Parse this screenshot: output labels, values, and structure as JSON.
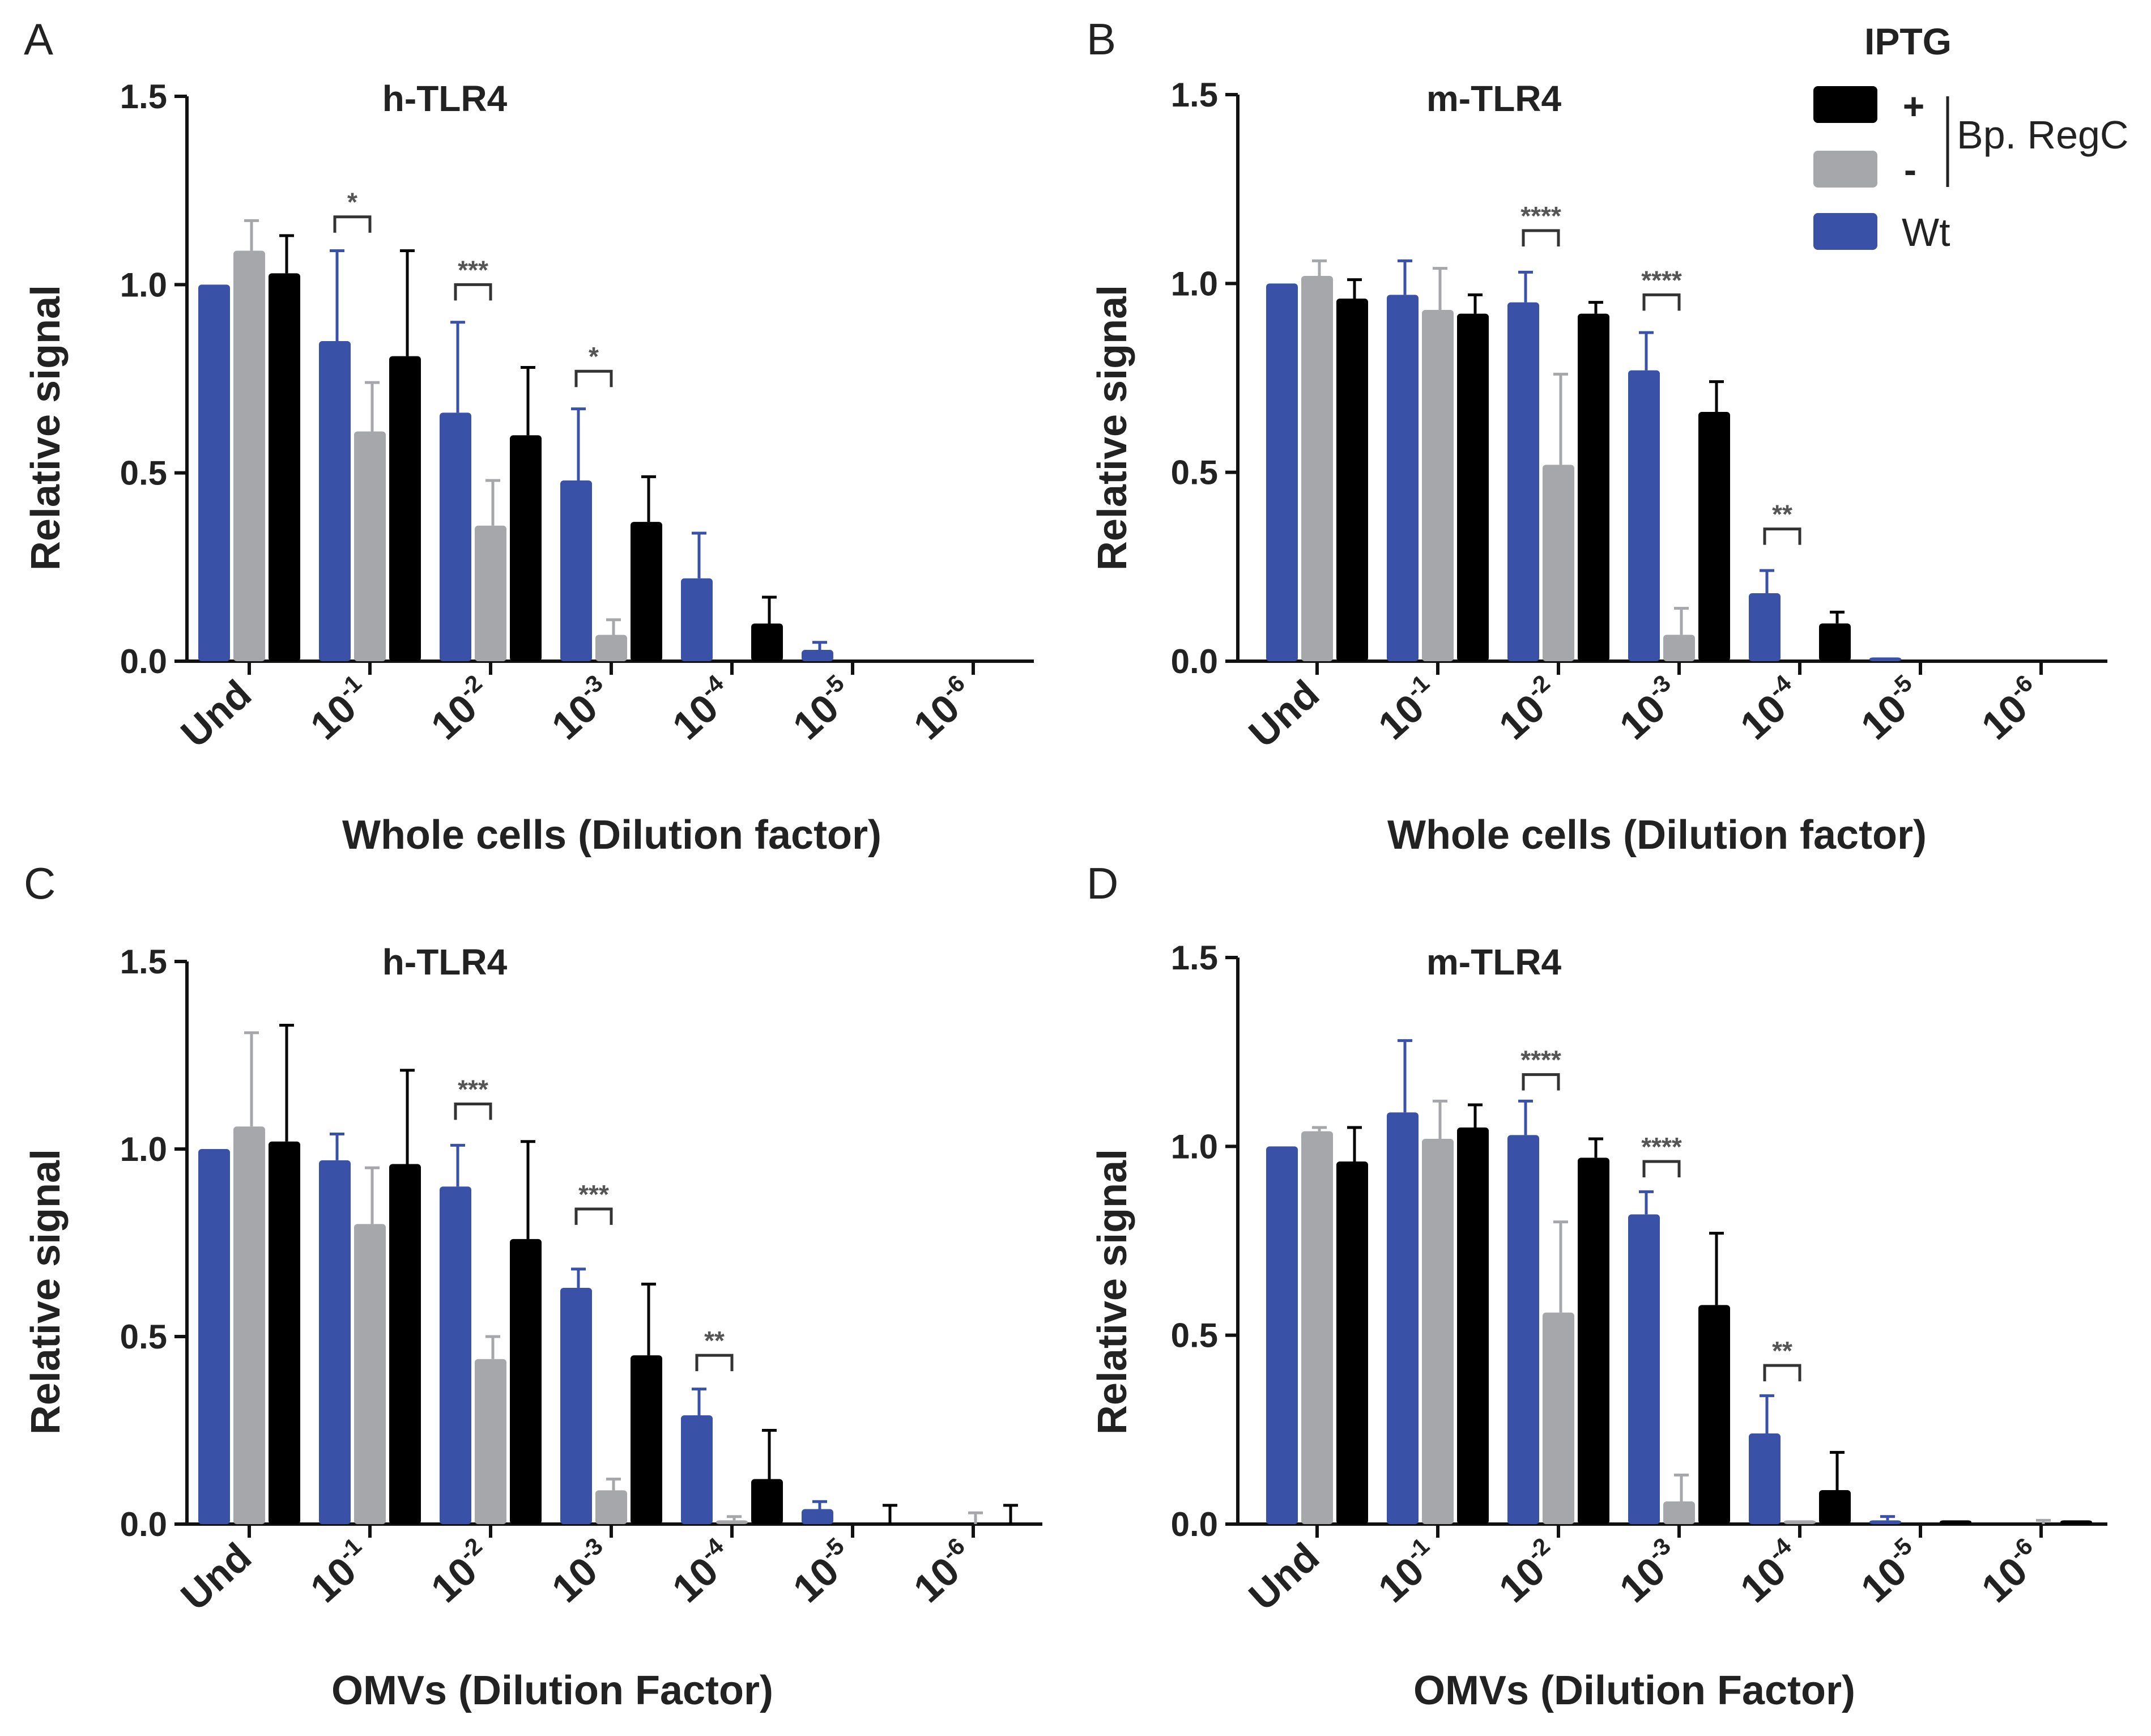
{
  "colors": {
    "wt": "#3952a8",
    "minus": "#a6a7ab",
    "plus": "#000000"
  },
  "legend": {
    "title": "IPTG",
    "bracket_label": "Bp. RegC",
    "entries": [
      {
        "key": "plus",
        "label": "+"
      },
      {
        "key": "minus",
        "label": "-"
      },
      {
        "key": "wt",
        "label": "Wt"
      }
    ]
  },
  "chart_data": [
    {
      "panel": "A",
      "type": "bar",
      "title": "h-TLR4",
      "xlabel": "Whole cells (Dilution factor)",
      "ylabel": "Relative signal",
      "ylim": [
        0,
        1.5
      ],
      "yticks": [
        "0.0",
        "0.5",
        "1.0",
        "1.5"
      ],
      "categories": [
        {
          "base": "Und",
          "exp": ""
        },
        {
          "base": "10",
          "exp": "-1"
        },
        {
          "base": "10",
          "exp": "-2"
        },
        {
          "base": "10",
          "exp": "-3"
        },
        {
          "base": "10",
          "exp": "-4"
        },
        {
          "base": "10",
          "exp": "-5"
        },
        {
          "base": "10",
          "exp": "-6"
        }
      ],
      "series": [
        {
          "key": "wt",
          "name": "Wt",
          "values": [
            1.0,
            0.85,
            0.66,
            0.48,
            0.22,
            0.03,
            0.0
          ],
          "errors": [
            0,
            0.24,
            0.24,
            0.19,
            0.12,
            0.02,
            0
          ]
        },
        {
          "key": "minus",
          "name": "-",
          "values": [
            1.09,
            0.61,
            0.36,
            0.07,
            0.0,
            0.0,
            0.0
          ],
          "errors": [
            0.08,
            0.13,
            0.12,
            0.04,
            0,
            0,
            0
          ]
        },
        {
          "key": "plus",
          "name": "+",
          "values": [
            1.03,
            0.81,
            0.6,
            0.37,
            0.1,
            0.0,
            0.0
          ],
          "errors": [
            0.1,
            0.28,
            0.18,
            0.12,
            0.07,
            0,
            0
          ]
        }
      ],
      "significance": [
        {
          "category": 1,
          "label": "*",
          "y": 1.18
        },
        {
          "category": 2,
          "label": "***",
          "y": 1.0
        },
        {
          "category": 3,
          "label": "*",
          "y": 0.77
        }
      ]
    },
    {
      "panel": "B",
      "type": "bar",
      "title": "m-TLR4",
      "xlabel": "Whole cells (Dilution factor)",
      "ylabel": "Relative signal",
      "ylim": [
        0,
        1.5
      ],
      "yticks": [
        "0.0",
        "0.5",
        "1.0",
        "1.5"
      ],
      "categories": [
        {
          "base": "Und",
          "exp": ""
        },
        {
          "base": "10",
          "exp": "-1"
        },
        {
          "base": "10",
          "exp": "-2"
        },
        {
          "base": "10",
          "exp": "-3"
        },
        {
          "base": "10",
          "exp": "-4"
        },
        {
          "base": "10",
          "exp": "-5"
        },
        {
          "base": "10",
          "exp": "-6"
        }
      ],
      "series": [
        {
          "key": "wt",
          "name": "Wt",
          "values": [
            1.0,
            0.97,
            0.95,
            0.77,
            0.18,
            0.01,
            0.0
          ],
          "errors": [
            0,
            0.09,
            0.08,
            0.1,
            0.06,
            0,
            0
          ]
        },
        {
          "key": "minus",
          "name": "-",
          "values": [
            1.02,
            0.93,
            0.52,
            0.07,
            0.0,
            0.0,
            0.0
          ],
          "errors": [
            0.04,
            0.11,
            0.24,
            0.07,
            0,
            0,
            0
          ]
        },
        {
          "key": "plus",
          "name": "+",
          "values": [
            0.96,
            0.92,
            0.92,
            0.66,
            0.1,
            0.0,
            0.0
          ],
          "errors": [
            0.05,
            0.05,
            0.03,
            0.08,
            0.03,
            0,
            0
          ]
        }
      ],
      "significance": [
        {
          "category": 2,
          "label": "****",
          "y": 1.14
        },
        {
          "category": 3,
          "label": "****",
          "y": 0.97
        },
        {
          "category": 4,
          "label": "**",
          "y": 0.35
        }
      ]
    },
    {
      "panel": "C",
      "type": "bar",
      "title": "h-TLR4",
      "xlabel": "OMVs (Dilution Factor)",
      "ylabel": "Relative signal",
      "ylim": [
        0,
        1.5
      ],
      "yticks": [
        "0.0",
        "0.5",
        "1.0",
        "1.5"
      ],
      "categories": [
        {
          "base": "Und",
          "exp": ""
        },
        {
          "base": "10",
          "exp": "-1"
        },
        {
          "base": "10",
          "exp": "-2"
        },
        {
          "base": "10",
          "exp": "-3"
        },
        {
          "base": "10",
          "exp": "-4"
        },
        {
          "base": "10",
          "exp": "-5"
        },
        {
          "base": "10",
          "exp": "-6"
        }
      ],
      "series": [
        {
          "key": "wt",
          "name": "Wt",
          "values": [
            1.0,
            0.97,
            0.9,
            0.63,
            0.29,
            0.04,
            0.0
          ],
          "errors": [
            0,
            0.07,
            0.11,
            0.05,
            0.07,
            0.02,
            0
          ]
        },
        {
          "key": "minus",
          "name": "-",
          "values": [
            1.06,
            0.8,
            0.44,
            0.09,
            0.01,
            0.0,
            0.0
          ],
          "errors": [
            0.25,
            0.15,
            0.06,
            0.03,
            0.01,
            0,
            0.03
          ]
        },
        {
          "key": "plus",
          "name": "+",
          "values": [
            1.02,
            0.96,
            0.76,
            0.45,
            0.12,
            0.0,
            0.0
          ],
          "errors": [
            0.31,
            0.25,
            0.26,
            0.19,
            0.13,
            0.05,
            0.05
          ]
        }
      ],
      "significance": [
        {
          "category": 2,
          "label": "***",
          "y": 1.12
        },
        {
          "category": 3,
          "label": "***",
          "y": 0.84
        },
        {
          "category": 4,
          "label": "**",
          "y": 0.45
        }
      ]
    },
    {
      "panel": "D",
      "type": "bar",
      "title": "m-TLR4",
      "xlabel": "OMVs (Dilution Factor)",
      "ylabel": "Relative signal",
      "ylim": [
        0,
        1.5
      ],
      "yticks": [
        "0.0",
        "0.5",
        "1.0",
        "1.5"
      ],
      "categories": [
        {
          "base": "Und",
          "exp": ""
        },
        {
          "base": "10",
          "exp": "-1"
        },
        {
          "base": "10",
          "exp": "-2"
        },
        {
          "base": "10",
          "exp": "-3"
        },
        {
          "base": "10",
          "exp": "-4"
        },
        {
          "base": "10",
          "exp": "-5"
        },
        {
          "base": "10",
          "exp": "-6"
        }
      ],
      "series": [
        {
          "key": "wt",
          "name": "Wt",
          "values": [
            1.0,
            1.09,
            1.03,
            0.82,
            0.24,
            0.01,
            0.0
          ],
          "errors": [
            0,
            0.19,
            0.09,
            0.06,
            0.1,
            0.01,
            0
          ]
        },
        {
          "key": "minus",
          "name": "-",
          "values": [
            1.04,
            1.02,
            0.56,
            0.06,
            0.01,
            0.0,
            0.0
          ],
          "errors": [
            0.01,
            0.1,
            0.24,
            0.07,
            0,
            0,
            0.01
          ]
        },
        {
          "key": "plus",
          "name": "+",
          "values": [
            0.96,
            1.05,
            0.97,
            0.58,
            0.09,
            0.01,
            0.01
          ],
          "errors": [
            0.09,
            0.06,
            0.05,
            0.19,
            0.1,
            0,
            0
          ]
        }
      ],
      "significance": [
        {
          "category": 2,
          "label": "****",
          "y": 1.19
        },
        {
          "category": 3,
          "label": "****",
          "y": 0.96
        },
        {
          "category": 4,
          "label": "**",
          "y": 0.42
        }
      ]
    }
  ]
}
